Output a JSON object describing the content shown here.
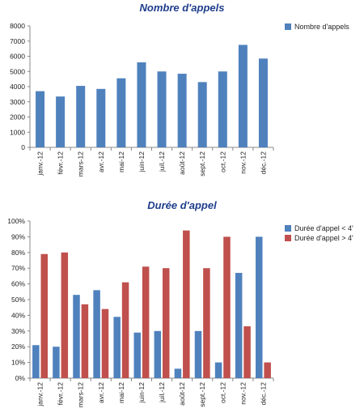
{
  "chart_data": [
    {
      "type": "bar",
      "title": "Nombre d'appels",
      "categories": [
        "janv.-12",
        "févr.-12",
        "mars-12",
        "avr.-12",
        "mai-12",
        "juin-12",
        "juil.-12",
        "août-12",
        "sept.-12",
        "oct.-12",
        "nov.-12",
        "déc.-12"
      ],
      "series": [
        {
          "name": "Nombre d'appels",
          "color": "#4f81bd",
          "values": [
            3700,
            3350,
            4050,
            3850,
            4550,
            5600,
            5000,
            4850,
            4300,
            5000,
            6750,
            5850
          ]
        }
      ],
      "ylim": [
        0,
        8000
      ],
      "yticks": [
        "0",
        "1000",
        "2000",
        "3000",
        "4000",
        "5000",
        "6000",
        "7000",
        "8000"
      ],
      "legend": "right",
      "grid": false
    },
    {
      "type": "bar",
      "title": "Durée d'appel",
      "categories": [
        "janv.-12",
        "févr.-12",
        "mars-12",
        "avr.-12",
        "mai-12",
        "juin-12",
        "juil.-12",
        "août-12",
        "sept.-12",
        "oct.-12",
        "nov.-12",
        "déc.-12"
      ],
      "series": [
        {
          "name": "Durée d'appel < 4'",
          "color": "#4f81bd",
          "values": [
            21,
            20,
            53,
            56,
            39,
            29,
            30,
            6,
            30,
            10,
            67,
            90
          ]
        },
        {
          "name": "Durée d'appel > 4'",
          "color": "#c0504d",
          "values": [
            79,
            80,
            47,
            44,
            61,
            71,
            70,
            94,
            70,
            90,
            33,
            10
          ]
        }
      ],
      "ylim": [
        0,
        100
      ],
      "yticks": [
        "0%",
        "10%",
        "20%",
        "30%",
        "40%",
        "50%",
        "60%",
        "70%",
        "80%",
        "90%",
        "100%"
      ],
      "legend": "right",
      "grid": false
    }
  ]
}
